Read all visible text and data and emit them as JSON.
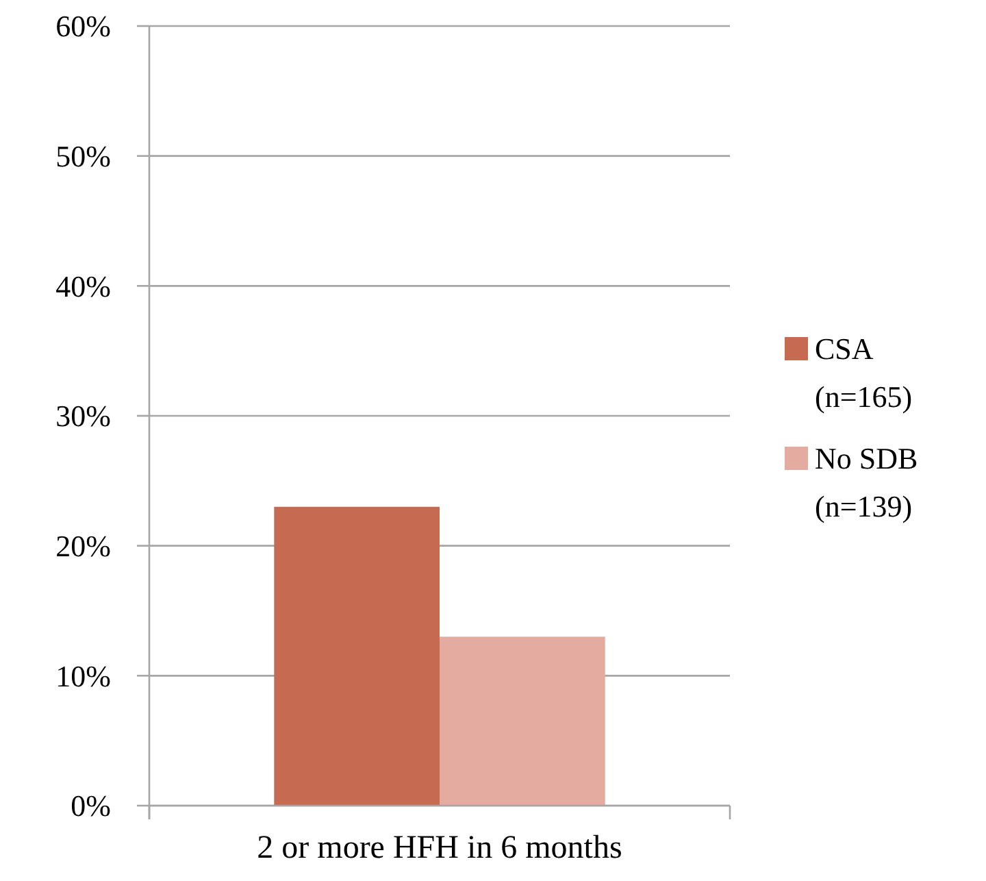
{
  "chart_data": {
    "type": "bar",
    "categories": [
      "2 or more HFH in 6 months"
    ],
    "series": [
      {
        "name": "CSA (n=165)",
        "color": "#c66b51",
        "values": [
          23
        ]
      },
      {
        "name": "No SDB (n=139)",
        "color": "#e4aba0",
        "values": [
          13
        ]
      }
    ],
    "ylim": [
      0,
      60
    ],
    "yticks": [
      {
        "value": 0,
        "label": "0%"
      },
      {
        "value": 10,
        "label": "10%"
      },
      {
        "value": 20,
        "label": "20%"
      },
      {
        "value": 30,
        "label": "30%"
      },
      {
        "value": 40,
        "label": "40%"
      },
      {
        "value": 50,
        "label": "50%"
      },
      {
        "value": 60,
        "label": "60%"
      }
    ],
    "grid": "y",
    "legend": "right"
  }
}
